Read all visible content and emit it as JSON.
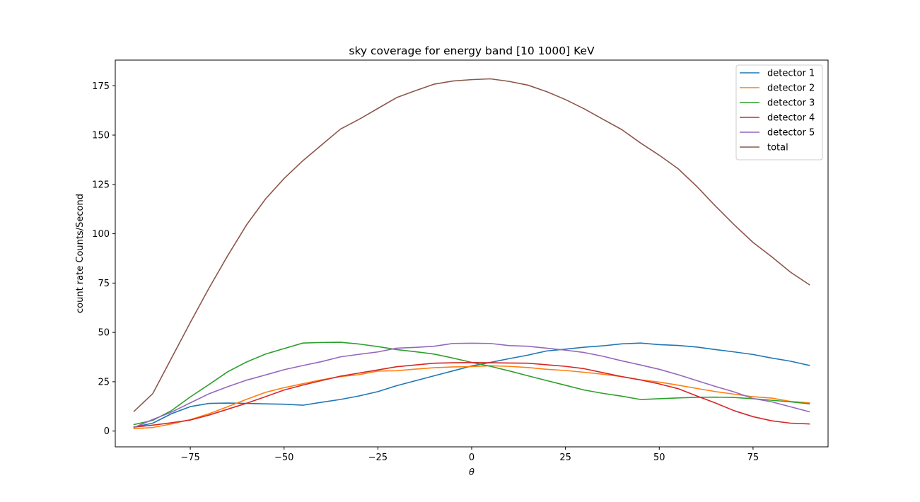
{
  "chart_data": {
    "type": "line",
    "title": "sky coverage for energy band [10 1000] KeV",
    "xlabel": "θ",
    "ylabel": "count rate Counts/Second",
    "xlim": [
      -95,
      95
    ],
    "ylim": [
      -8,
      188
    ],
    "xticks": [
      -75,
      -50,
      -25,
      0,
      25,
      50,
      75
    ],
    "xtick_labels": [
      "−75",
      "−50",
      "−25",
      "0",
      "25",
      "50",
      "75"
    ],
    "yticks": [
      0,
      25,
      50,
      75,
      100,
      125,
      150,
      175
    ],
    "ytick_labels": [
      "0",
      "25",
      "50",
      "75",
      "100",
      "125",
      "150",
      "175"
    ],
    "grid": false,
    "legend_position": "top-right",
    "x": [
      -90,
      -85,
      -80,
      -75,
      -70,
      -65,
      -60,
      -55,
      -50,
      -45,
      -40,
      -35,
      -30,
      -25,
      -20,
      -15,
      -10,
      -5,
      0,
      5,
      10,
      15,
      20,
      25,
      30,
      35,
      40,
      45,
      50,
      55,
      60,
      65,
      70,
      75,
      80,
      85,
      90
    ],
    "series": [
      {
        "name": "detector 1",
        "color": "#1f77b4",
        "values": [
          2,
          4,
          8.8,
          12.4,
          14,
          14.2,
          14,
          13.8,
          13.6,
          13.1,
          14.6,
          16,
          17.8,
          20,
          23,
          25.5,
          28,
          30.5,
          33,
          34.8,
          36.7,
          38.5,
          40.6,
          41.5,
          42.5,
          43.2,
          44.2,
          44.6,
          43.8,
          43.4,
          42.6,
          41.3,
          40.1,
          38.8,
          37,
          35.4,
          33.3
        ]
      },
      {
        "name": "detector 2",
        "color": "#ff7f0e",
        "values": [
          1.2,
          1.8,
          3.6,
          5.8,
          8.8,
          12.4,
          16.1,
          19.6,
          22,
          24,
          26,
          27.6,
          28.6,
          30.4,
          30.6,
          31.4,
          32.1,
          32.5,
          32.7,
          33.1,
          32.8,
          32.2,
          31.3,
          30.7,
          29.8,
          28.8,
          27.6,
          26,
          24.8,
          23.3,
          21.6,
          20,
          18.7,
          17.4,
          16.7,
          15,
          14.3
        ]
      },
      {
        "name": "detector 3",
        "color": "#2ca02c",
        "values": [
          3.3,
          5.4,
          10.4,
          17.3,
          23.6,
          30.1,
          35,
          39,
          41.8,
          44.6,
          44.9,
          45,
          44.1,
          42.8,
          41.3,
          40.2,
          39,
          37,
          34.8,
          32.8,
          30.5,
          28,
          25.6,
          23.2,
          20.8,
          19.1,
          17.7,
          16,
          16.4,
          16.8,
          17.1,
          17.2,
          17,
          16.4,
          15.6,
          14.8,
          13.8
        ]
      },
      {
        "name": "detector 4",
        "color": "#d62728",
        "values": [
          2,
          3,
          4.2,
          5.6,
          8.1,
          11.1,
          14.1,
          17.4,
          20.8,
          23.3,
          25.6,
          27.8,
          29.4,
          31,
          32.6,
          33.5,
          34.4,
          34.6,
          34.7,
          34.6,
          34.5,
          34.4,
          33.6,
          32.8,
          31.6,
          29.6,
          27.6,
          25.9,
          23.9,
          21.5,
          17.8,
          14.2,
          10.3,
          7.3,
          5.2,
          4,
          3.6
        ]
      },
      {
        "name": "detector 5",
        "color": "#9467bd",
        "values": [
          1.8,
          5.9,
          9.6,
          14.3,
          18.9,
          22.5,
          25.8,
          28.4,
          31.1,
          33.2,
          35.2,
          37.6,
          38.9,
          40.1,
          42,
          42.4,
          43,
          44.4,
          44.5,
          44.4,
          43.3,
          43,
          42,
          41,
          39.8,
          37.9,
          35.6,
          33.5,
          31.3,
          28.6,
          25.6,
          22.6,
          19.8,
          16.5,
          14.8,
          12.3,
          9.8
        ]
      },
      {
        "name": "total",
        "color": "#8c564b",
        "values": [
          10,
          19,
          37,
          55,
          72.5,
          89,
          104.5,
          117.5,
          128,
          137,
          145,
          153,
          158,
          163.5,
          169,
          172.5,
          175.8,
          177.4,
          178.1,
          178.5,
          177.2,
          175.3,
          172,
          168,
          163.3,
          158,
          152.8,
          146,
          139.8,
          133,
          124,
          114,
          104.5,
          95.6,
          88.3,
          80.5,
          74.2
        ]
      }
    ]
  }
}
